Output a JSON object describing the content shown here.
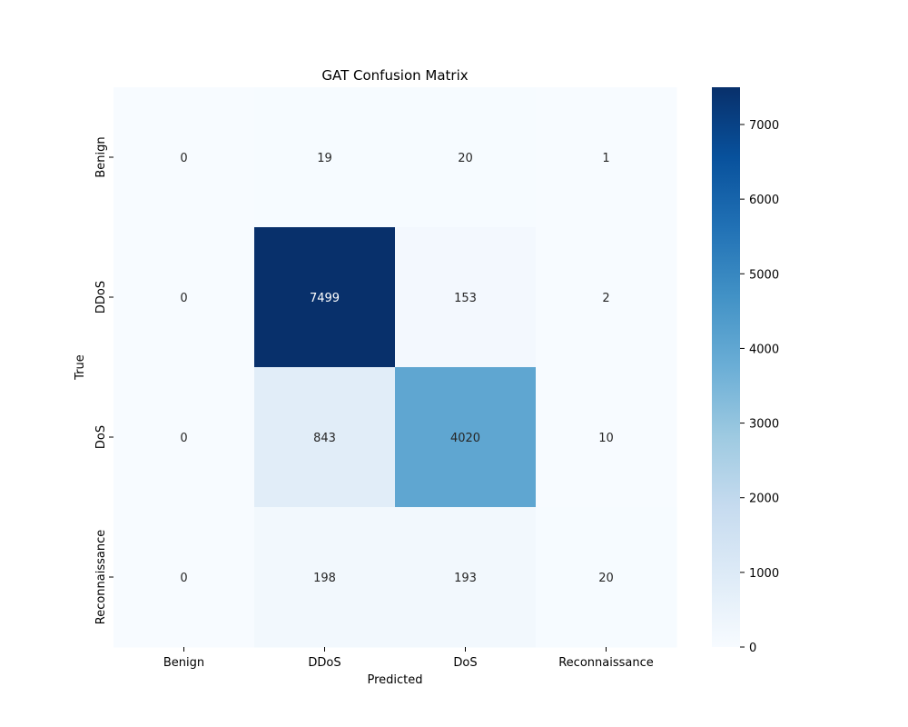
{
  "chart_data": {
    "type": "heatmap",
    "title": "GAT Confusion Matrix",
    "xlabel": "Predicted",
    "ylabel": "True",
    "x_categories": [
      "Benign",
      "DDoS",
      "DoS",
      "Reconnaissance"
    ],
    "y_categories": [
      "Benign",
      "DDoS",
      "DoS",
      "Reconnaissance"
    ],
    "values": [
      [
        0,
        19,
        20,
        1
      ],
      [
        0,
        7499,
        153,
        2
      ],
      [
        0,
        843,
        4020,
        10
      ],
      [
        0,
        198,
        193,
        20
      ]
    ],
    "colorbar": {
      "colormap": "Blues",
      "range": [
        0,
        7499
      ],
      "ticks": [
        0,
        1000,
        2000,
        3000,
        4000,
        5000,
        6000,
        7000
      ]
    }
  }
}
